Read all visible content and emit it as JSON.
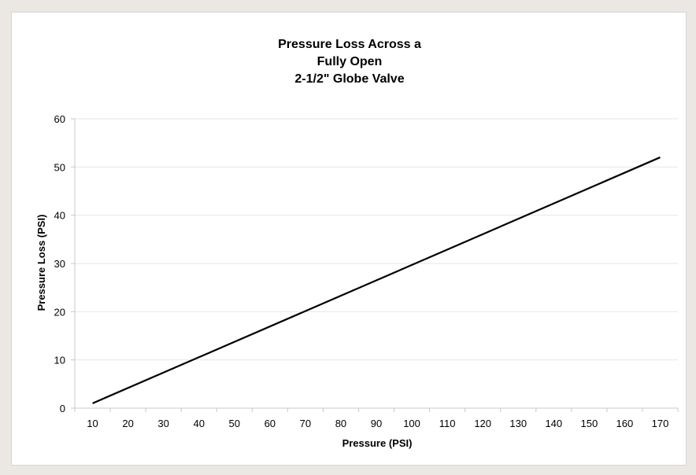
{
  "chart_data": {
    "type": "line",
    "title": [
      "Pressure Loss Across a",
      "Fully Open",
      "2-1/2\" Globe Valve"
    ],
    "xlabel": "Pressure (PSI)",
    "ylabel": "Pressure Loss (PSI)",
    "x_ticks": [
      10,
      20,
      30,
      40,
      50,
      60,
      70,
      80,
      90,
      100,
      110,
      120,
      130,
      140,
      150,
      160,
      170
    ],
    "y_ticks": [
      0,
      10,
      20,
      30,
      40,
      50,
      60
    ],
    "xlim": [
      5,
      175
    ],
    "ylim": [
      0,
      60
    ],
    "grid": "horizontal",
    "legend": "none",
    "series": [
      {
        "color": "#000000",
        "x": [
          10,
          170
        ],
        "y": [
          1,
          52
        ]
      }
    ]
  }
}
